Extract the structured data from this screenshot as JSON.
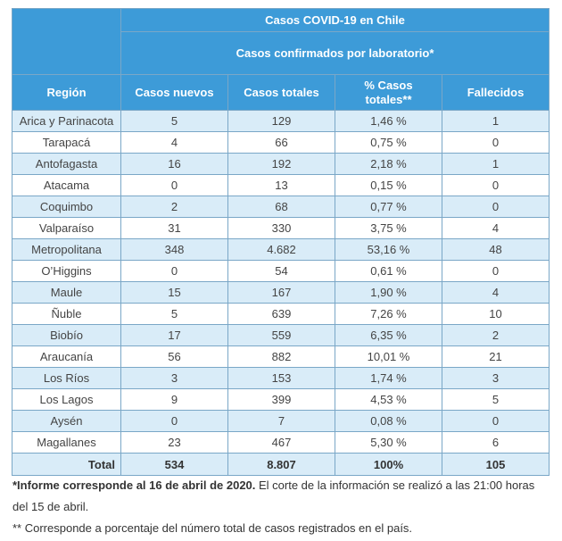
{
  "table": {
    "title": "Casos COVID-19 en Chile",
    "subtitle": "Casos confirmados por laboratorio*",
    "columns": [
      "Región",
      "Casos nuevos",
      "Casos totales",
      "% Casos totales**",
      "Fallecidos"
    ],
    "rows": [
      [
        "Arica y Parinacota",
        "5",
        "129",
        "1,46 %",
        "1"
      ],
      [
        "Tarapacá",
        "4",
        "66",
        "0,75 %",
        "0"
      ],
      [
        "Antofagasta",
        "16",
        "192",
        "2,18 %",
        "1"
      ],
      [
        "Atacama",
        "0",
        "13",
        "0,15 %",
        "0"
      ],
      [
        "Coquimbo",
        "2",
        "68",
        "0,77 %",
        "0"
      ],
      [
        "Valparaíso",
        "31",
        "330",
        "3,75 %",
        "4"
      ],
      [
        "Metropolitana",
        "348",
        "4.682",
        "53,16 %",
        "48"
      ],
      [
        "O’Higgins",
        "0",
        "54",
        "0,61 %",
        "0"
      ],
      [
        "Maule",
        "15",
        "167",
        "1,90 %",
        "4"
      ],
      [
        "Ñuble",
        "5",
        "639",
        "7,26 %",
        "10"
      ],
      [
        "Biobío",
        "17",
        "559",
        "6,35 %",
        "2"
      ],
      [
        "Araucanía",
        "56",
        "882",
        "10,01 %",
        "21"
      ],
      [
        "Los Ríos",
        "3",
        "153",
        "1,74 %",
        "3"
      ],
      [
        "Los Lagos",
        "9",
        "399",
        "4,53 %",
        "5"
      ],
      [
        "Aysén",
        "0",
        "7",
        "0,08 %",
        "0"
      ],
      [
        "Magallanes",
        "23",
        "467",
        "5,30 %",
        "6"
      ]
    ],
    "total": [
      "Total",
      "534",
      "8.807",
      "100%",
      "105"
    ]
  },
  "notes": {
    "note1_bold": "*Informe corresponde al 16 de abril de 2020.",
    "note1_rest": " El corte de la información se realizó a las 21:00 horas del 15 de abril.",
    "note2": "** Corresponde a porcentaje del número total de casos registrados en el país."
  }
}
